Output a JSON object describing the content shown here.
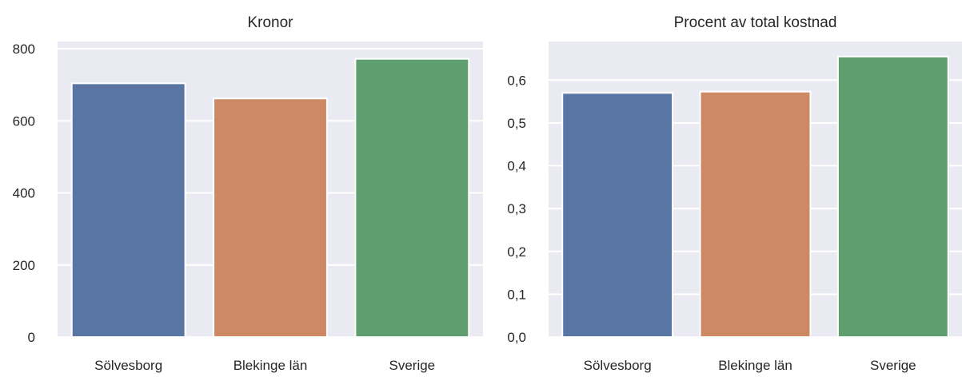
{
  "chart_data": [
    {
      "type": "bar",
      "title": "Kronor",
      "xlabel": "",
      "ylabel": "",
      "categories": [
        "Sölvesborg",
        "Blekinge län",
        "Sverige"
      ],
      "values": [
        704,
        662,
        772
      ],
      "ylim": [
        0,
        820
      ],
      "yticks": [
        0,
        200,
        400,
        600,
        800
      ],
      "ytick_labels": [
        "0",
        "200",
        "400",
        "600",
        "800"
      ],
      "colors": [
        "#5875a4",
        "#cc8963",
        "#5f9e6e"
      ],
      "grid": true,
      "background": "#eaeaf2"
    },
    {
      "type": "bar",
      "title": "Procent av total kostnad",
      "xlabel": "",
      "ylabel": "",
      "categories": [
        "Sölvesborg",
        "Blekinge län",
        "Sverige"
      ],
      "values": [
        0.57,
        0.573,
        0.655
      ],
      "ylim": [
        0,
        0.69
      ],
      "yticks": [
        0,
        0.1,
        0.2,
        0.3,
        0.4,
        0.5,
        0.6
      ],
      "ytick_labels": [
        "0,0",
        "0,1",
        "0,2",
        "0,3",
        "0,4",
        "0,5",
        "0,6"
      ],
      "colors": [
        "#5875a4",
        "#cc8963",
        "#5f9e6e"
      ],
      "grid": true,
      "background": "#eaeaf2"
    }
  ]
}
